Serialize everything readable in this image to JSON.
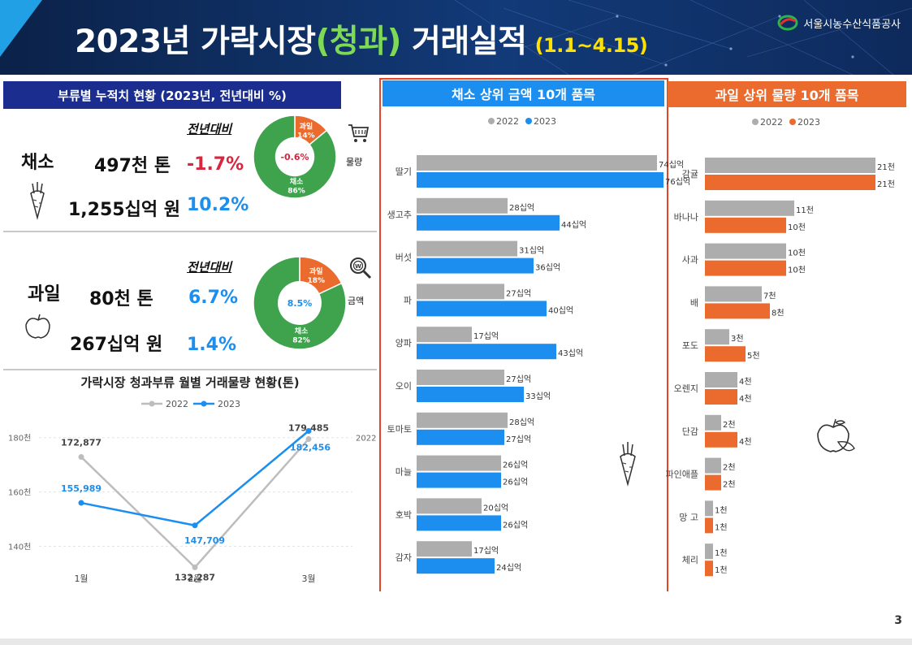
{
  "header": {
    "title_pre": "2023년 가락시장",
    "title_highlight": "(청과)",
    "title_post": "거래실적",
    "period": "(1.1~4.15)",
    "org": "서울시농수산식품공사"
  },
  "summary": {
    "title": "부류별 누적치 현황 (2023년, 전년대비 %)",
    "yoy_label_1": "전년대비",
    "yoy_label_2": "전년대비",
    "veg": {
      "label": "채소",
      "volume": "497천 톤",
      "volume_pct": "-1.7%",
      "amount": "1,255십억 원",
      "amount_pct": "10.2%"
    },
    "fruit": {
      "label": "과일",
      "volume": "80천  톤",
      "volume_pct": "6.7%",
      "amount": "267십억  원",
      "amount_pct": "1.4%"
    },
    "donut_volume": {
      "fruit_label": "과일",
      "fruit_pct": "14%",
      "veg_label": "채소",
      "veg_pct": "86%",
      "center": "-0.6%",
      "fruit_share": 0.14
    },
    "donut_amount": {
      "fruit_label": "과일",
      "fruit_pct": "18%",
      "veg_label": "채소",
      "veg_pct": "82%",
      "center": "8.5%",
      "fruit_share": 0.18
    },
    "side_volume_label": "물량",
    "side_amount_label": "금액",
    "colors": {
      "green": "#3fa34d",
      "orange": "#ea6b2d"
    }
  },
  "chart_data": [
    {
      "type": "line",
      "title": "가락시장 청과부류 월별 거래물량 현황(톤)",
      "categories": [
        "1월",
        "2월",
        "3월"
      ],
      "series": [
        {
          "name": "2022",
          "values": [
            172877,
            132287,
            179485
          ],
          "labels": [
            "172,877",
            "132,287",
            "179,485"
          ],
          "color": "#bdbdbd"
        },
        {
          "name": "2023",
          "values": [
            155989,
            147709,
            182456
          ],
          "labels": [
            "155,989",
            "147,709",
            "182,456"
          ],
          "color": "#1b8ef0"
        }
      ],
      "ylim": [
        130000,
        185000
      ],
      "yticks": [
        140000,
        160000,
        180000
      ],
      "ytick_labels": [
        "140천",
        "160천",
        "180천"
      ],
      "side_label": "2022"
    },
    {
      "type": "bar",
      "orientation": "horizontal",
      "title": "채소 상위 금액 10개 품목",
      "categories": [
        "딸기",
        "생고추",
        "버섯",
        "파",
        "양파",
        "오이",
        "토마토",
        "마늘",
        "호박",
        "감자"
      ],
      "series": [
        {
          "name": "2022",
          "values": [
            74,
            28,
            31,
            27,
            17,
            27,
            28,
            26,
            20,
            17
          ],
          "color": "#adadad"
        },
        {
          "name": "2023",
          "values": [
            76,
            44,
            36,
            40,
            43,
            33,
            27,
            26,
            26,
            24
          ],
          "color": "#1b8ef0"
        }
      ],
      "unit": "십억",
      "xlim": [
        0,
        80
      ]
    },
    {
      "type": "bar",
      "orientation": "horizontal",
      "title": "과일 상위 물량 10개 품목",
      "categories": [
        "감귤",
        "바나나",
        "사과",
        "배",
        "포도",
        "오렌지",
        "단감",
        "파인애플",
        "망 고",
        "체리"
      ],
      "series": [
        {
          "name": "2022",
          "values": [
            21,
            11,
            10,
            7,
            3,
            4,
            2,
            2,
            1,
            1
          ],
          "color": "#adadad"
        },
        {
          "name": "2023",
          "values": [
            21,
            10,
            10,
            8,
            5,
            4,
            4,
            2,
            1,
            1
          ],
          "color": "#ea6b2d"
        }
      ],
      "unit": "천",
      "xlim": [
        0,
        22
      ]
    }
  ],
  "page_number": "3"
}
